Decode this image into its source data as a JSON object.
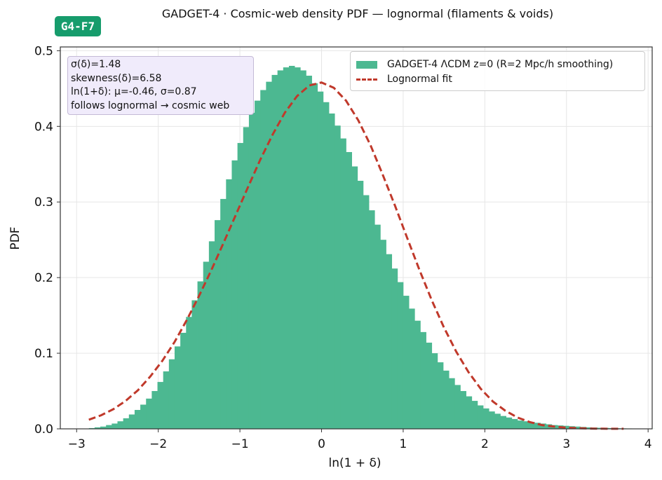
{
  "badge": "G4-F7",
  "chart_data": {
    "type": "bar",
    "title": "GADGET-4 · Cosmic-web density PDF — lognormal (filaments & voids)",
    "xlabel": "ln(1 + δ)",
    "ylabel": "PDF",
    "xlim": [
      -3.2,
      4.05
    ],
    "ylim": [
      0,
      0.505
    ],
    "xticks": [
      -3,
      -2,
      -1,
      0,
      1,
      2,
      3,
      4
    ],
    "xtick_labels": [
      "−3",
      "−2",
      "−1",
      "0",
      "1",
      "2",
      "3",
      "4"
    ],
    "yticks": [
      0.0,
      0.1,
      0.2,
      0.3,
      0.4,
      0.5
    ],
    "ytick_labels": [
      "0.0",
      "0.1",
      "0.2",
      "0.3",
      "0.4",
      "0.5"
    ],
    "grid": true,
    "legend_position": "top-right",
    "colors": {
      "histogram": "#4cb891",
      "fit": "#c0392b"
    },
    "histogram": {
      "name": "GADGET-4 ΛCDM z=0 (R=2 Mpc/h smoothing)",
      "bin_start": -2.85,
      "bin_width": 0.07,
      "values": [
        0.001,
        0.002,
        0.003,
        0.005,
        0.007,
        0.01,
        0.014,
        0.019,
        0.025,
        0.032,
        0.04,
        0.05,
        0.062,
        0.076,
        0.092,
        0.109,
        0.127,
        0.148,
        0.17,
        0.195,
        0.221,
        0.248,
        0.276,
        0.304,
        0.33,
        0.355,
        0.378,
        0.399,
        0.418,
        0.434,
        0.448,
        0.459,
        0.468,
        0.474,
        0.478,
        0.48,
        0.478,
        0.474,
        0.467,
        0.457,
        0.446,
        0.432,
        0.417,
        0.401,
        0.384,
        0.366,
        0.347,
        0.328,
        0.309,
        0.289,
        0.27,
        0.25,
        0.231,
        0.212,
        0.194,
        0.176,
        0.159,
        0.143,
        0.128,
        0.114,
        0.1,
        0.088,
        0.077,
        0.067,
        0.058,
        0.05,
        0.043,
        0.037,
        0.031,
        0.027,
        0.023,
        0.02,
        0.017,
        0.015,
        0.013,
        0.011,
        0.01,
        0.009,
        0.008,
        0.007,
        0.006,
        0.005,
        0.0045,
        0.004,
        0.0035,
        0.003,
        0.0025,
        0.002,
        0.0017,
        0.0014,
        0.0012,
        0.001,
        0.0008,
        0.0006,
        0.0005,
        0.0004,
        0.0003,
        0.0002,
        0.0001
      ]
    },
    "fit": {
      "name": "Lognormal fit",
      "x": [
        -2.85,
        -2.7,
        -2.55,
        -2.4,
        -2.25,
        -2.1,
        -1.95,
        -1.8,
        -1.65,
        -1.5,
        -1.35,
        -1.2,
        -1.05,
        -0.9,
        -0.75,
        -0.6,
        -0.45,
        -0.3,
        -0.15,
        0.0,
        0.15,
        0.3,
        0.45,
        0.6,
        0.75,
        0.9,
        1.05,
        1.2,
        1.35,
        1.5,
        1.65,
        1.8,
        1.95,
        2.1,
        2.25,
        2.4,
        2.55,
        2.7,
        2.85,
        3.0,
        3.15,
        3.3,
        3.45,
        3.6,
        3.7
      ],
      "y": [
        0.012,
        0.018,
        0.026,
        0.037,
        0.051,
        0.069,
        0.09,
        0.115,
        0.144,
        0.176,
        0.21,
        0.246,
        0.283,
        0.32,
        0.356,
        0.389,
        0.418,
        0.44,
        0.454,
        0.458,
        0.451,
        0.434,
        0.408,
        0.375,
        0.336,
        0.295,
        0.252,
        0.21,
        0.17,
        0.134,
        0.102,
        0.075,
        0.053,
        0.036,
        0.024,
        0.015,
        0.009,
        0.005,
        0.003,
        0.0016,
        0.0008,
        0.0004,
        0.0002,
        0.0001,
        5e-05
      ]
    },
    "stats_box": [
      "σ(δ)=1.48",
      "skewness(δ)=6.58",
      "ln(1+δ): μ=-0.46, σ=0.87",
      "follows lognormal → cosmic web"
    ]
  }
}
